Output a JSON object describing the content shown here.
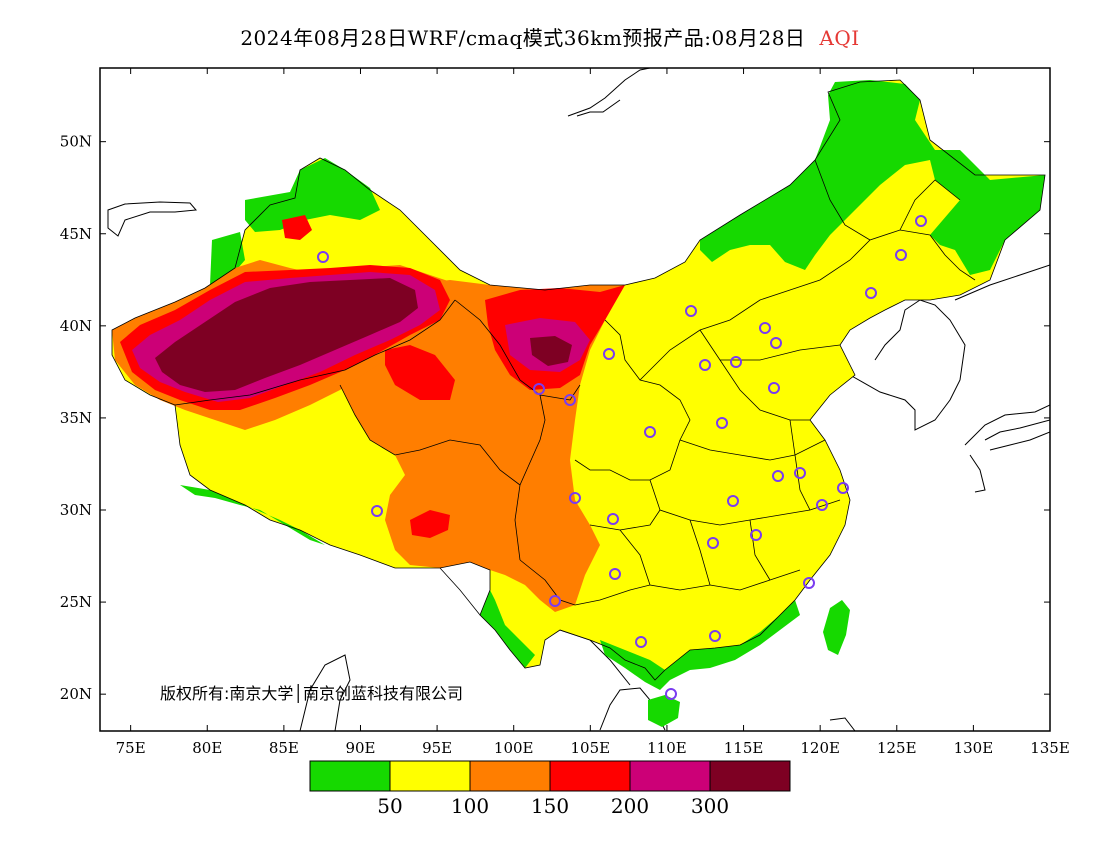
{
  "title": {
    "text": "2024年08月28日WRF/cmaq模式36km预报产品:08月28日",
    "variable": "AQI",
    "variable_color": "#e53935"
  },
  "copyright": "版权所有:南京大学│南京创蓝科技有限公司",
  "map": {
    "lon_range": [
      73,
      135
    ],
    "lat_range": [
      18,
      54
    ],
    "lon_ticks": [
      "75E",
      "80E",
      "85E",
      "90E",
      "95E",
      "100E",
      "105E",
      "110E",
      "115E",
      "120E",
      "125E",
      "130E",
      "135E"
    ],
    "lat_ticks": [
      "20N",
      "25N",
      "30N",
      "35N",
      "40N",
      "45N",
      "50N"
    ],
    "station_marker_color": "#7a3cf0",
    "background_color": "#ffffff"
  },
  "legend": {
    "colors": [
      "#16d900",
      "#ffff00",
      "#ff7e00",
      "#ff0000",
      "#cc0077",
      "#7e0023"
    ],
    "labels": [
      "50",
      "100",
      "150",
      "200",
      "300"
    ],
    "categories": [
      "0-50",
      "50-100",
      "100-150",
      "150-200",
      "200-300",
      ">300"
    ]
  },
  "icons": {
    "station": "circle-marker-icon"
  }
}
